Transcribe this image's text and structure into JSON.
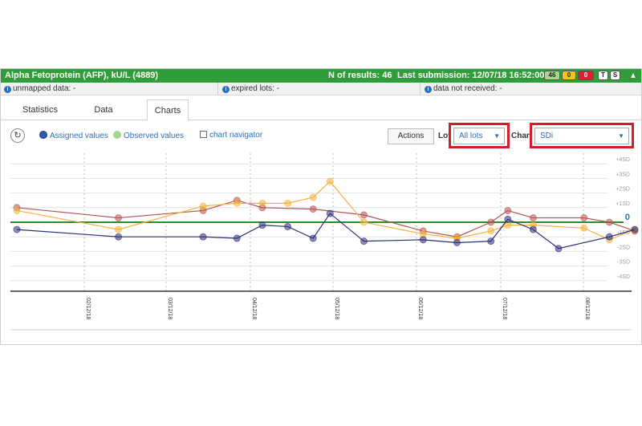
{
  "header": {
    "title": "Alpha Fetoprotein (AFP), kU/L (4889)",
    "n_results": "N of results: 46",
    "last_submission": "Last submission: 12/07/18 16:52:00",
    "badges": {
      "green": "46",
      "yellow": "0",
      "red": "0",
      "t": "T",
      "s": "S"
    }
  },
  "infobar": {
    "unmapped": "unmapped data: -",
    "expired": "expired lots: -",
    "not_received": "data not received: -"
  },
  "tabs": [
    {
      "label": "Statistics"
    },
    {
      "label": "Data"
    },
    {
      "label": "Charts"
    }
  ],
  "toolbar": {
    "assigned": "Assigned values",
    "observed": "Observed values",
    "navigator": "chart navigator",
    "actions": "Actions",
    "lot_label": "Lot",
    "lot_value": "All lots",
    "chart_label": "Chart",
    "chart_value": "SDi"
  },
  "colors": {
    "header_green": "#2f9e3a",
    "assigned_blue": "#2a5bb0",
    "observed_green": "#9fd88a",
    "series_red": "#b5524f",
    "series_yellow": "#f3b23c",
    "series_navy": "#2b2f78",
    "zero_line": "#2e8b2e",
    "highlight_red": "#d11f2a"
  },
  "chart_data": {
    "type": "line",
    "ylim": [
      -5,
      5
    ],
    "y_ticks": [
      "+4SD",
      "+3SD",
      "+2SD",
      "+1SD",
      "0",
      "-1SD",
      "-2SD",
      "-3SD",
      "-4SD"
    ],
    "x_ticks": [
      "02/12/18",
      "03/12/18",
      "04/12/18",
      "05/12/18",
      "06/12/18",
      "07/12/18",
      "08/12/18"
    ],
    "series": [
      {
        "color_key": "series_red",
        "x": [
          0.0,
          1.2,
          2.2,
          2.6,
          2.9,
          3.5,
          4.1,
          4.8,
          5.2,
          5.6,
          5.8,
          6.1,
          6.7,
          7.0,
          7.3
        ],
        "y": [
          1.0,
          0.3,
          0.8,
          1.5,
          1.0,
          0.9,
          0.5,
          -0.6,
          -1.0,
          0.0,
          0.8,
          0.3,
          0.3,
          0.0,
          -0.6
        ]
      },
      {
        "color_key": "series_yellow",
        "x": [
          0.0,
          1.2,
          2.2,
          2.6,
          2.9,
          3.2,
          3.5,
          3.7,
          4.1,
          4.8,
          5.2,
          5.6,
          5.8,
          6.1,
          6.7,
          7.0,
          7.3
        ],
        "y": [
          0.8,
          -0.5,
          1.1,
          1.3,
          1.3,
          1.3,
          1.7,
          2.8,
          0.0,
          -0.8,
          -1.1,
          -0.6,
          -0.2,
          -0.2,
          -0.4,
          -1.2,
          -0.5
        ]
      },
      {
        "color_key": "series_navy",
        "x": [
          0.0,
          1.2,
          2.2,
          2.6,
          2.9,
          3.2,
          3.5,
          3.7,
          4.1,
          4.8,
          5.2,
          5.6,
          5.8,
          6.1,
          6.4,
          7.0,
          7.3
        ],
        "y": [
          -0.5,
          -1.0,
          -1.0,
          -1.1,
          -0.2,
          -0.3,
          -1.1,
          0.6,
          -1.3,
          -1.2,
          -1.4,
          -1.3,
          0.2,
          -0.5,
          -1.8,
          -1.0,
          -0.5
        ]
      }
    ]
  }
}
